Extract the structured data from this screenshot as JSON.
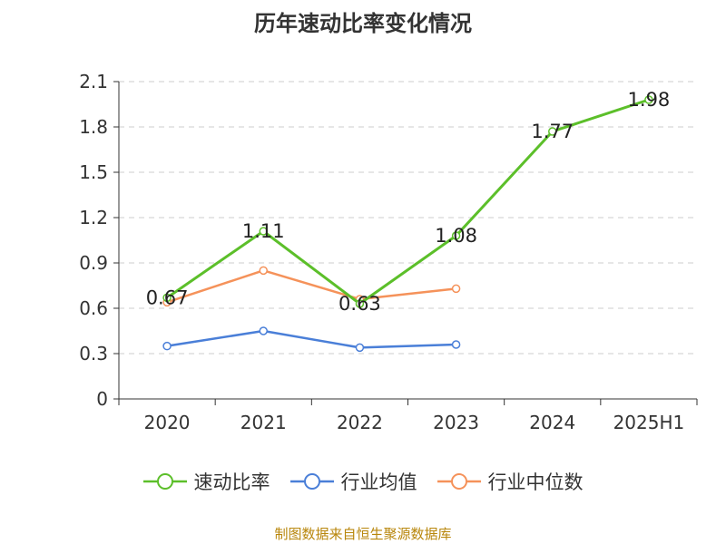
{
  "chart_data": {
    "type": "line",
    "title": "历年速动比率变化情况",
    "categories": [
      "2020",
      "2021",
      "2022",
      "2023",
      "2024",
      "2025H1"
    ],
    "series": [
      {
        "name": "速动比率",
        "color": "#5cbf2a",
        "values": [
          0.67,
          1.11,
          0.63,
          1.08,
          1.77,
          1.98
        ],
        "data_labels": [
          "0.67",
          "1.11",
          "0.63",
          "1.08",
          "1.77",
          "1.98"
        ]
      },
      {
        "name": "行业均值",
        "color": "#4a7fd8",
        "values": [
          0.35,
          0.45,
          0.34,
          0.36,
          null,
          null
        ]
      },
      {
        "name": "行业中位数",
        "color": "#f5925a",
        "values": [
          0.64,
          0.85,
          0.66,
          0.73,
          null,
          null
        ]
      }
    ],
    "yticks": [
      "0",
      "0.3",
      "0.6",
      "0.9",
      "1.2",
      "1.5",
      "1.8",
      "2.1"
    ],
    "ylim": [
      0,
      2.1
    ],
    "grid": true,
    "legend_position": "bottom"
  },
  "source": "制图数据来自恒生聚源数据库"
}
